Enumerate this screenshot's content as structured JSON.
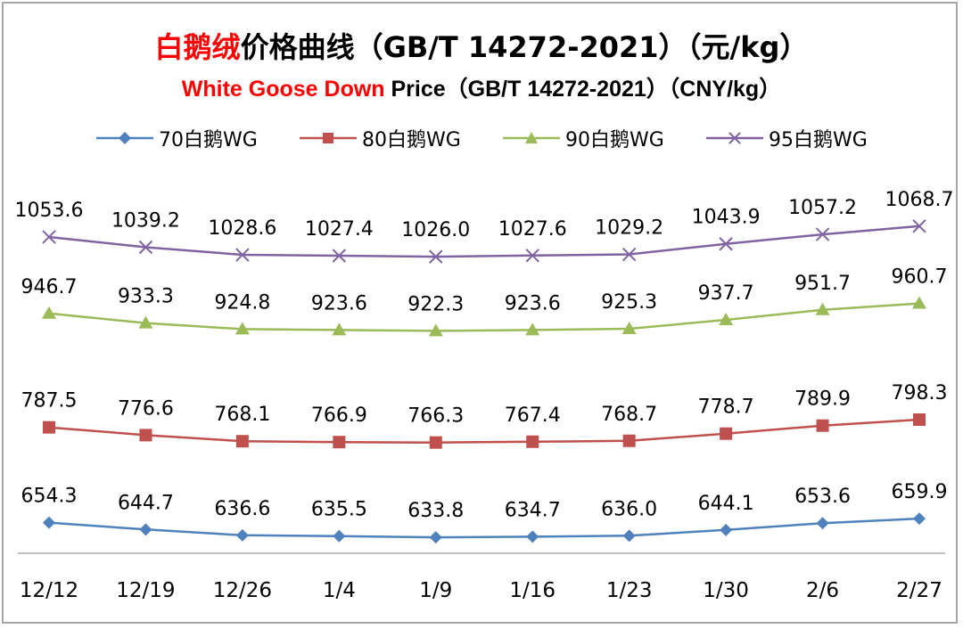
{
  "title": {
    "cn_highlight": "白鹅绒",
    "cn_rest": "价格曲线（GB/T 14272-2021）（元/kg）",
    "en_highlight": "White Goose Down",
    "en_rest": " Price（GB/T 14272-2021）（CNY/kg）"
  },
  "colors": {
    "s70": "#4f81bd",
    "s80": "#c0504d",
    "s90": "#9bbb59",
    "s95": "#8064a2",
    "title_highlight": "#ff0000"
  },
  "chart_data": {
    "type": "line",
    "categories": [
      "12/12",
      "12/19",
      "12/26",
      "1/4",
      "1/9",
      "1/16",
      "1/23",
      "1/30",
      "2/6",
      "2/27"
    ],
    "series": [
      {
        "name": "70白鹅WG",
        "marker": "diamond",
        "values": [
          654.3,
          644.7,
          636.6,
          635.5,
          633.8,
          634.7,
          636.0,
          644.1,
          653.6,
          659.9
        ],
        "labels": [
          "654.3",
          "644.7",
          "636.6",
          "635.5",
          "633.8",
          "634.7",
          "636.0",
          "644.1",
          "653.6",
          "659.9"
        ]
      },
      {
        "name": "80白鹅WG",
        "marker": "square",
        "values": [
          787.5,
          776.6,
          768.1,
          766.9,
          766.3,
          767.4,
          768.7,
          778.7,
          789.9,
          798.3
        ],
        "labels": [
          "787.5",
          "776.6",
          "768.1",
          "766.9",
          "766.3",
          "767.4",
          "768.7",
          "778.7",
          "789.9",
          "798.3"
        ]
      },
      {
        "name": "90白鹅WG",
        "marker": "triangle",
        "values": [
          946.7,
          933.3,
          924.8,
          923.6,
          922.3,
          923.6,
          925.3,
          937.7,
          951.7,
          960.7
        ],
        "labels": [
          "946.7",
          "933.3",
          "924.8",
          "923.6",
          "922.3",
          "923.6",
          "925.3",
          "937.7",
          "951.7",
          "960.7"
        ]
      },
      {
        "name": "95白鹅WG",
        "marker": "x",
        "values": [
          1053.6,
          1039.2,
          1028.6,
          1027.4,
          1026.0,
          1027.6,
          1029.2,
          1043.9,
          1057.2,
          1068.7
        ],
        "labels": [
          "1053.6",
          "1039.2",
          "1028.6",
          "1027.4",
          "1026.0",
          "1027.6",
          "1029.2",
          "1043.9",
          "1057.2",
          "1068.7"
        ]
      }
    ],
    "legend_position": "top",
    "grid": false
  }
}
